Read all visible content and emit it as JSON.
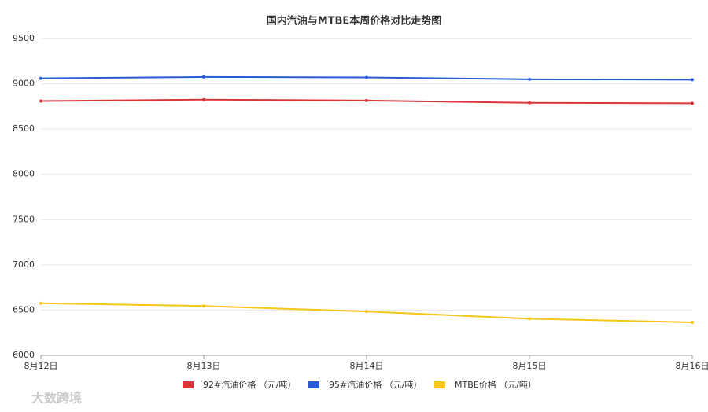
{
  "chart_data": {
    "type": "line",
    "title": "国内汽油与MTBE本周价格对比走势图",
    "categories": [
      "8月12日",
      "8月13日",
      "8月14日",
      "8月15日",
      "8月16日"
    ],
    "series": [
      {
        "name": "92#汽油价格 （元/吨）",
        "color": "#d9363a",
        "values": [
          8810,
          8825,
          8815,
          8790,
          8785
        ]
      },
      {
        "name": "95#汽油价格 （元/吨）",
        "color": "#2a5bd7",
        "values": [
          9060,
          9075,
          9070,
          9050,
          9045
        ]
      },
      {
        "name": "MTBE价格 （元/吨）",
        "color": "#f5c518",
        "values": [
          6575,
          6545,
          6485,
          6405,
          6365
        ]
      }
    ],
    "ylim": [
      6000,
      9500
    ],
    "yticks": [
      6000,
      6500,
      7000,
      7500,
      8000,
      8500,
      9000,
      9500
    ],
    "grid": true,
    "legend": "bottom",
    "watermark": "大数跨境"
  }
}
